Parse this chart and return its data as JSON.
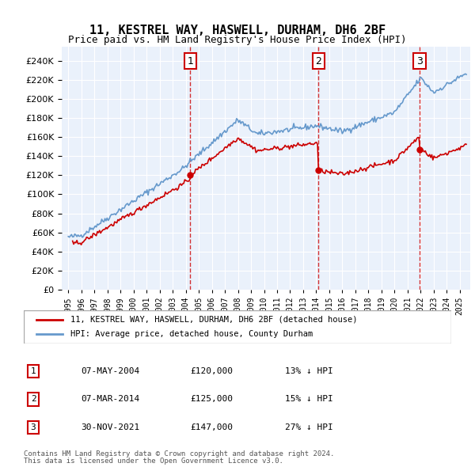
{
  "title": "11, KESTREL WAY, HASWELL, DURHAM, DH6 2BF",
  "subtitle": "Price paid vs. HM Land Registry's House Price Index (HPI)",
  "red_line_label": "11, KESTREL WAY, HASWELL, DURHAM, DH6 2BF (detached house)",
  "blue_line_label": "HPI: Average price, detached house, County Durham",
  "sales": [
    {
      "num": 1,
      "date": "07-MAY-2004",
      "price": 120000,
      "pct": "13%",
      "dir": "↓",
      "year": 2004.35
    },
    {
      "num": 2,
      "date": "07-MAR-2014",
      "price": 125000,
      "pct": "15%",
      "dir": "↓",
      "year": 2014.17
    },
    {
      "num": 3,
      "date": "30-NOV-2021",
      "price": 147000,
      "pct": "27%",
      "dir": "↓",
      "year": 2021.92
    }
  ],
  "footnote1": "Contains HM Land Registry data © Crown copyright and database right 2024.",
  "footnote2": "This data is licensed under the Open Government Licence v3.0.",
  "ylim": [
    0,
    250000
  ],
  "yticks": [
    0,
    20000,
    40000,
    60000,
    80000,
    100000,
    120000,
    140000,
    160000,
    180000,
    200000,
    220000,
    240000
  ],
  "bg_color": "#e8f0f8",
  "plot_bg_color": "#eaf1fb",
  "grid_color": "#ffffff",
  "red_color": "#cc0000",
  "blue_color": "#6699cc"
}
